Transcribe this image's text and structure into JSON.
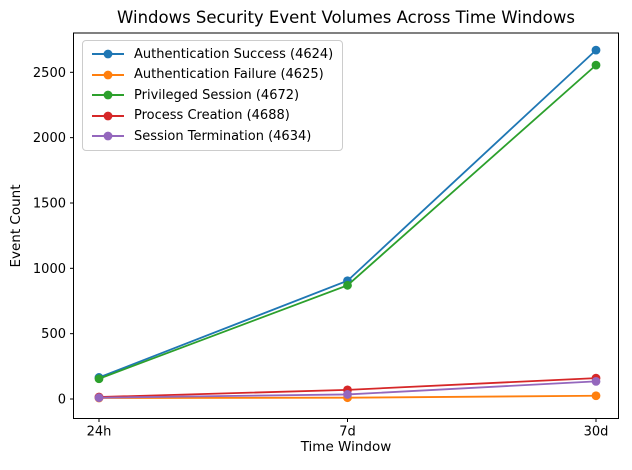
{
  "chart_data": {
    "type": "line",
    "title": "Windows Security Event Volumes Across Time Windows",
    "xlabel": "Time Window",
    "ylabel": "Event Count",
    "categories": [
      "24h",
      "7d",
      "30d"
    ],
    "yticks": [
      0,
      500,
      1000,
      1500,
      2000,
      2500
    ],
    "ylim": [
      -145,
      2800
    ],
    "grid": false,
    "legend_position": "upper left",
    "marker": "o",
    "series": [
      {
        "name": "Authentication Success (4624)",
        "color": "#1f77b4",
        "values": [
          165,
          905,
          2670
        ]
      },
      {
        "name": "Authentication Failure (4625)",
        "color": "#ff7f0e",
        "values": [
          8,
          10,
          25
        ]
      },
      {
        "name": "Privileged Session (4672)",
        "color": "#2ca02c",
        "values": [
          155,
          870,
          2555
        ]
      },
      {
        "name": "Process Creation (4688)",
        "color": "#d62728",
        "values": [
          15,
          70,
          160
        ]
      },
      {
        "name": "Session Termination (4634)",
        "color": "#9467bd",
        "values": [
          10,
          35,
          135
        ]
      }
    ]
  }
}
